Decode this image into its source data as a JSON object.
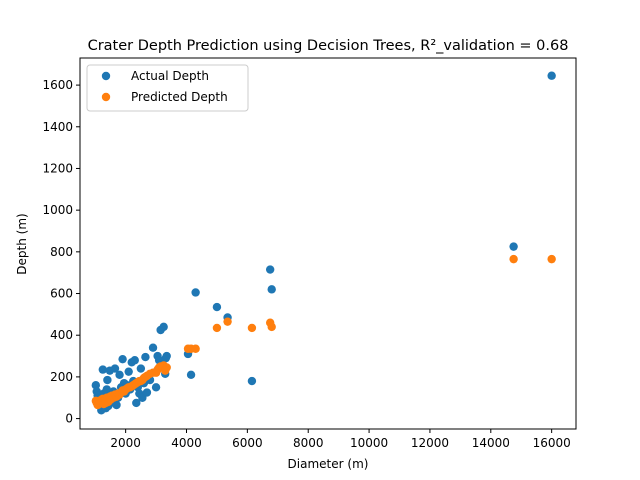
{
  "chart_data": {
    "type": "scatter",
    "title": "Crater Depth Prediction using Decision Trees, R²_validation = 0.68",
    "xlabel": "Diameter (m)",
    "ylabel": "Depth (m)",
    "xlim": [
      500,
      16800
    ],
    "ylim": [
      -50,
      1730
    ],
    "xticks": [
      2000,
      4000,
      6000,
      8000,
      10000,
      12000,
      14000,
      16000
    ],
    "yticks": [
      0,
      200,
      400,
      600,
      800,
      1000,
      1200,
      1400,
      1600
    ],
    "grid": false,
    "legend_position": "top-left",
    "series": [
      {
        "name": "Actual Depth",
        "color": "#1f77b4",
        "points": [
          [
            1020,
            160
          ],
          [
            1050,
            130
          ],
          [
            1080,
            110
          ],
          [
            1100,
            95
          ],
          [
            1120,
            80
          ],
          [
            1150,
            70
          ],
          [
            1180,
            60
          ],
          [
            1200,
            40
          ],
          [
            1220,
            90
          ],
          [
            1250,
            235
          ],
          [
            1280,
            120
          ],
          [
            1300,
            100
          ],
          [
            1330,
            75
          ],
          [
            1350,
            50
          ],
          [
            1380,
            140
          ],
          [
            1400,
            185
          ],
          [
            1430,
            60
          ],
          [
            1450,
            110
          ],
          [
            1480,
            230
          ],
          [
            1500,
            90
          ],
          [
            1550,
            80
          ],
          [
            1600,
            130
          ],
          [
            1650,
            240
          ],
          [
            1700,
            65
          ],
          [
            1750,
            100
          ],
          [
            1800,
            210
          ],
          [
            1850,
            150
          ],
          [
            1900,
            285
          ],
          [
            1950,
            170
          ],
          [
            2000,
            120
          ],
          [
            2050,
            160
          ],
          [
            2100,
            225
          ],
          [
            2150,
            140
          ],
          [
            2200,
            270
          ],
          [
            2250,
            180
          ],
          [
            2300,
            280
          ],
          [
            2350,
            75
          ],
          [
            2400,
            150
          ],
          [
            2450,
            120
          ],
          [
            2500,
            240
          ],
          [
            2550,
            100
          ],
          [
            2600,
            170
          ],
          [
            2650,
            295
          ],
          [
            2700,
            125
          ],
          [
            2800,
            185
          ],
          [
            2900,
            340
          ],
          [
            3000,
            150
          ],
          [
            3050,
            300
          ],
          [
            3100,
            280
          ],
          [
            3150,
            425
          ],
          [
            3200,
            250
          ],
          [
            3250,
            440
          ],
          [
            3300,
            215
          ],
          [
            3320,
            290
          ],
          [
            3350,
            300
          ],
          [
            4050,
            310
          ],
          [
            4150,
            210
          ],
          [
            4300,
            605
          ],
          [
            5000,
            535
          ],
          [
            5350,
            485
          ],
          [
            6150,
            180
          ],
          [
            6750,
            715
          ],
          [
            6800,
            620
          ],
          [
            14750,
            825
          ],
          [
            16000,
            1645
          ]
        ]
      },
      {
        "name": "Predicted Depth",
        "color": "#ff7f0e",
        "points": [
          [
            1020,
            85
          ],
          [
            1050,
            75
          ],
          [
            1080,
            65
          ],
          [
            1100,
            80
          ],
          [
            1120,
            70
          ],
          [
            1150,
            85
          ],
          [
            1180,
            75
          ],
          [
            1200,
            90
          ],
          [
            1220,
            80
          ],
          [
            1250,
            95
          ],
          [
            1280,
            70
          ],
          [
            1300,
            85
          ],
          [
            1330,
            90
          ],
          [
            1350,
            75
          ],
          [
            1380,
            100
          ],
          [
            1400,
            95
          ],
          [
            1430,
            80
          ],
          [
            1450,
            100
          ],
          [
            1480,
            105
          ],
          [
            1500,
            90
          ],
          [
            1550,
            110
          ],
          [
            1600,
            100
          ],
          [
            1650,
            115
          ],
          [
            1700,
            105
          ],
          [
            1750,
            120
          ],
          [
            1800,
            115
          ],
          [
            1850,
            125
          ],
          [
            1900,
            135
          ],
          [
            1950,
            130
          ],
          [
            2000,
            140
          ],
          [
            2050,
            145
          ],
          [
            2100,
            150
          ],
          [
            2150,
            150
          ],
          [
            2200,
            155
          ],
          [
            2250,
            160
          ],
          [
            2300,
            165
          ],
          [
            2350,
            170
          ],
          [
            2400,
            175
          ],
          [
            2450,
            180
          ],
          [
            2500,
            180
          ],
          [
            2550,
            185
          ],
          [
            2600,
            195
          ],
          [
            2650,
            200
          ],
          [
            2700,
            205
          ],
          [
            2800,
            215
          ],
          [
            2900,
            220
          ],
          [
            3000,
            220
          ],
          [
            3050,
            235
          ],
          [
            3100,
            245
          ],
          [
            3150,
            250
          ],
          [
            3200,
            250
          ],
          [
            3250,
            255
          ],
          [
            3300,
            230
          ],
          [
            3320,
            240
          ],
          [
            3350,
            245
          ],
          [
            4050,
            335
          ],
          [
            4150,
            335
          ],
          [
            4300,
            335
          ],
          [
            5000,
            435
          ],
          [
            5350,
            465
          ],
          [
            6150,
            435
          ],
          [
            6750,
            460
          ],
          [
            6800,
            440
          ],
          [
            14750,
            765
          ],
          [
            16000,
            765
          ]
        ]
      }
    ]
  }
}
